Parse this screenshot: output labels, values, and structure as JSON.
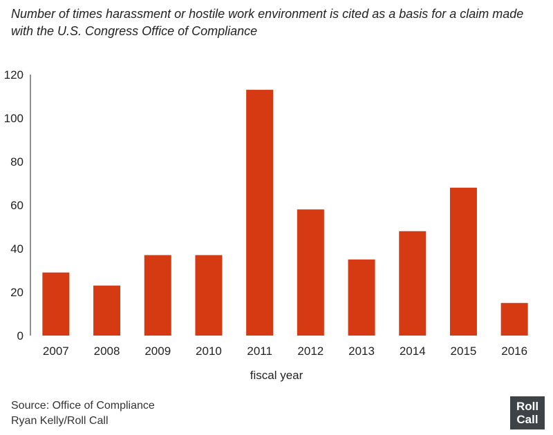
{
  "title": "Number of times harassment or hostile work environment is cited as a basis for a claim made with the U.S. Congress Office of Compliance",
  "source": {
    "line1": "Source: Office of Compliance",
    "line2": "Ryan Kelly/Roll Call"
  },
  "logo": {
    "line1": "Roll",
    "line2": "Call"
  },
  "colors": {
    "bar": "#d63a12",
    "axis": "#222222"
  },
  "chart_data": {
    "type": "bar",
    "title": "Number of times harassment or hostile work environment is cited as a basis for a claim made with the U.S. Congress Office of Compliance",
    "xlabel": "fiscal year",
    "ylabel": "",
    "categories": [
      "2007",
      "2008",
      "2009",
      "2010",
      "2011",
      "2012",
      "2013",
      "2014",
      "2015",
      "2016"
    ],
    "values": [
      29,
      23,
      37,
      37,
      113,
      58,
      35,
      48,
      68,
      15
    ],
    "ylim": [
      0,
      120
    ],
    "yticks": [
      0,
      20,
      40,
      60,
      80,
      100,
      120
    ],
    "grid": false,
    "legend": "none"
  }
}
